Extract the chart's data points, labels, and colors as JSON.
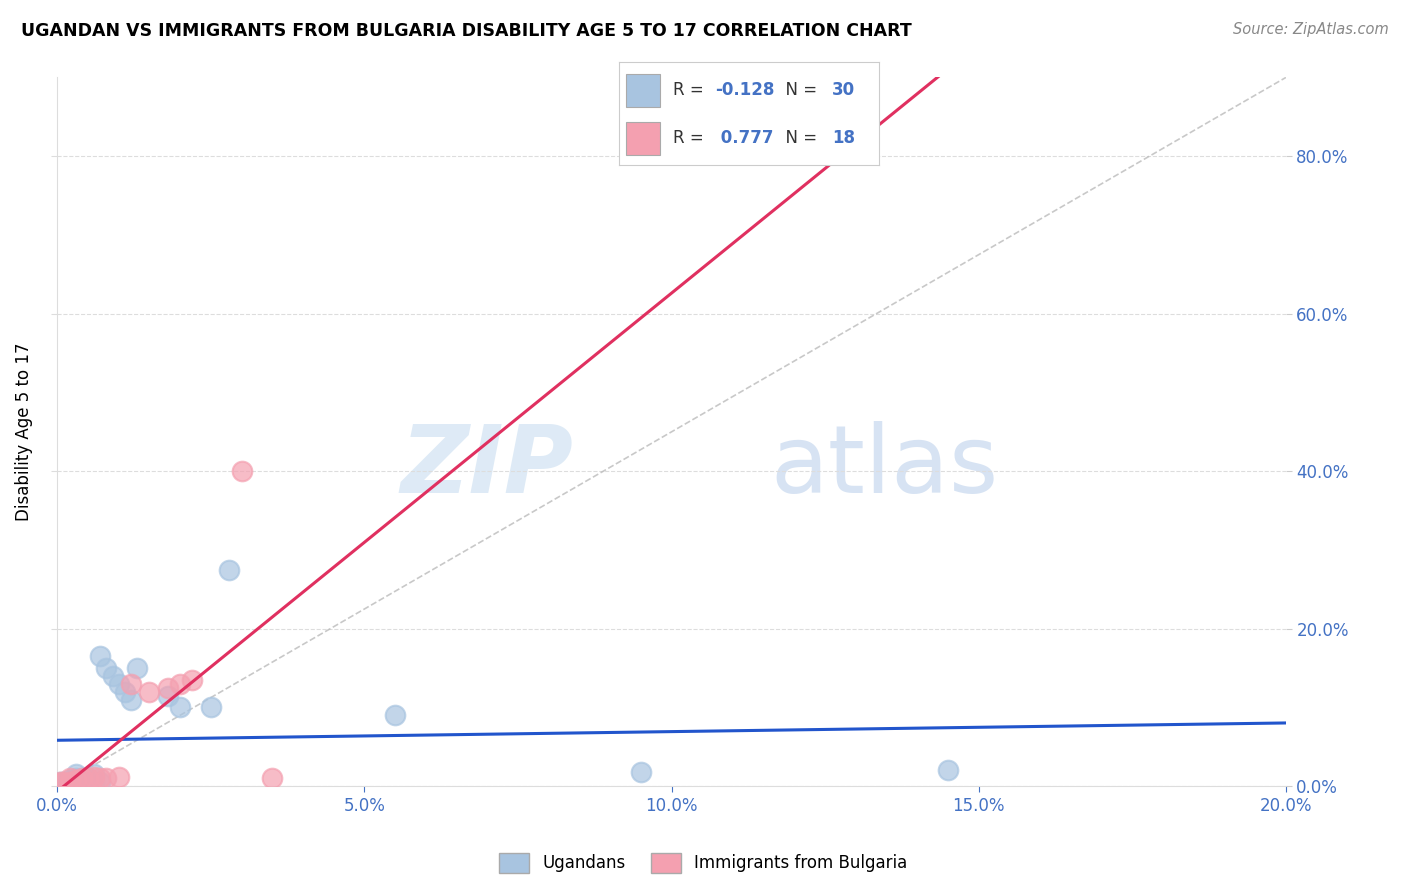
{
  "title": "UGANDAN VS IMMIGRANTS FROM BULGARIA DISABILITY AGE 5 TO 17 CORRELATION CHART",
  "source": "Source: ZipAtlas.com",
  "ylabel": "Disability Age 5 to 17",
  "r_ugandan": -0.128,
  "n_ugandan": 30,
  "r_bulgaria": 0.777,
  "n_bulgaria": 18,
  "ugandan_color": "#a8c4e0",
  "bulgaria_color": "#f4a0b0",
  "ugandan_line_color": "#2255cc",
  "bulgaria_line_color": "#e03060",
  "trendline_dashed_color": "#bbbbbb",
  "background_color": "#ffffff",
  "watermark_zip": "ZIP",
  "watermark_atlas": "atlas",
  "xlim": [
    0.0,
    0.2
  ],
  "ylim": [
    0.0,
    0.9
  ],
  "xticks": [
    0.0,
    0.05,
    0.1,
    0.15,
    0.2
  ],
  "yticks": [
    0.0,
    0.2,
    0.4,
    0.6,
    0.8
  ],
  "ugandan_x": [
    0.0005,
    0.001,
    0.0015,
    0.002,
    0.002,
    0.0025,
    0.003,
    0.003,
    0.003,
    0.004,
    0.004,
    0.005,
    0.005,
    0.006,
    0.006,
    0.007,
    0.007,
    0.008,
    0.009,
    0.01,
    0.011,
    0.012,
    0.013,
    0.018,
    0.02,
    0.025,
    0.028,
    0.055,
    0.095,
    0.145
  ],
  "ugandan_y": [
    0.005,
    0.005,
    0.005,
    0.005,
    0.008,
    0.008,
    0.005,
    0.01,
    0.015,
    0.005,
    0.01,
    0.005,
    0.01,
    0.005,
    0.015,
    0.005,
    0.165,
    0.15,
    0.14,
    0.13,
    0.12,
    0.11,
    0.15,
    0.115,
    0.1,
    0.1,
    0.275,
    0.09,
    0.018,
    0.02
  ],
  "bulgaria_x": [
    0.0005,
    0.001,
    0.002,
    0.002,
    0.003,
    0.004,
    0.005,
    0.006,
    0.007,
    0.008,
    0.01,
    0.012,
    0.015,
    0.018,
    0.02,
    0.022,
    0.03,
    0.035
  ],
  "bulgaria_y": [
    0.005,
    0.005,
    0.005,
    0.01,
    0.008,
    0.01,
    0.01,
    0.012,
    0.01,
    0.01,
    0.012,
    0.13,
    0.12,
    0.125,
    0.13,
    0.135,
    0.4,
    0.01
  ]
}
